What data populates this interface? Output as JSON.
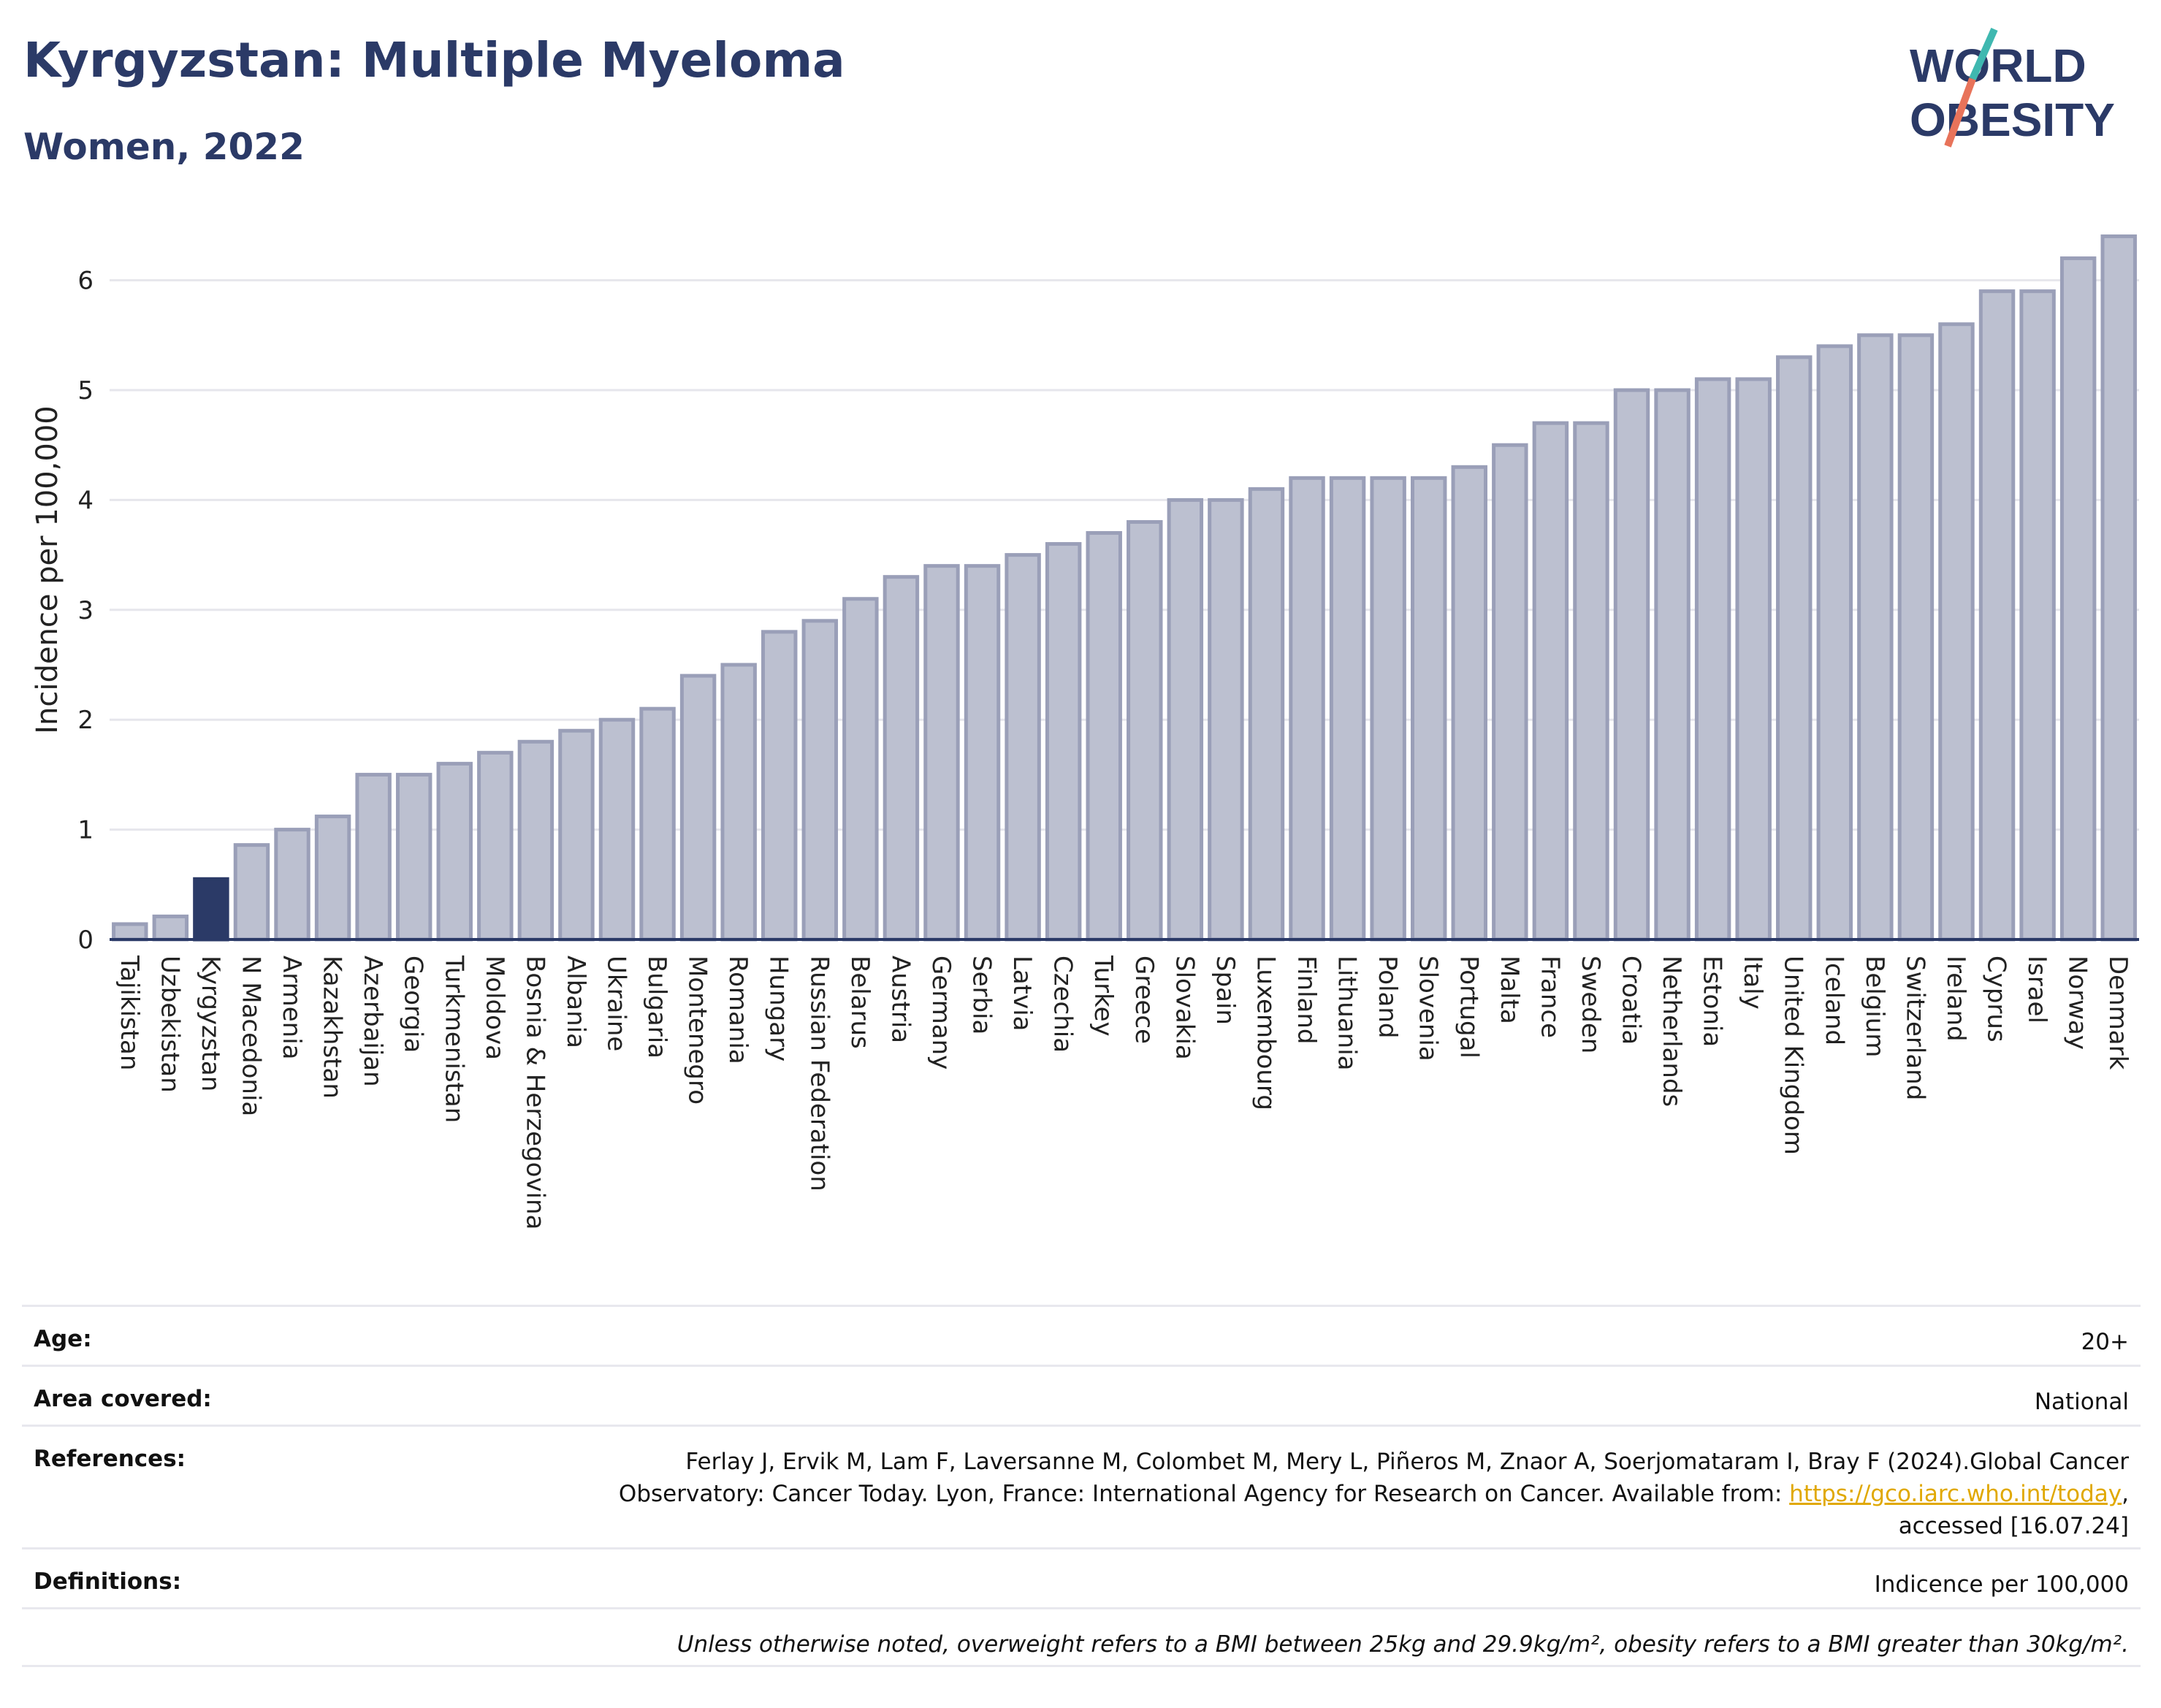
{
  "header": {
    "title": "Kyrgyzstan: Multiple Myeloma",
    "subtitle": "Women, 2022"
  },
  "logo": {
    "line1": "WORLD",
    "line2": "OBESITY",
    "icon": "slash-icon"
  },
  "colors": {
    "highlight": "#2b3a67",
    "bar": "#bcc0d0",
    "bar_stroke": "#9a9fb8",
    "axis": "#2b3a67",
    "grid": "#e6e6ec",
    "accent_teal": "#3fb8b0",
    "accent_coral": "#e8735a"
  },
  "chart_data": {
    "type": "bar",
    "ylabel": "Incidence per 100,000",
    "ylim": [
      0,
      6.5
    ],
    "yticks": [
      0,
      1,
      2,
      3,
      4,
      5,
      6
    ],
    "highlight": "Kyrgyzstan",
    "categories": [
      "Tajikistan",
      "Uzbekistan",
      "Kyrgyzstan",
      "N Macedonia",
      "Armenia",
      "Kazakhstan",
      "Azerbaijan",
      "Georgia",
      "Turkmenistan",
      "Moldova",
      "Bosnia & Herzegovina",
      "Albania",
      "Ukraine",
      "Bulgaria",
      "Montenegro",
      "Romania",
      "Hungary",
      "Russian Federation",
      "Belarus",
      "Austria",
      "Germany",
      "Serbia",
      "Latvia",
      "Czechia",
      "Turkey",
      "Greece",
      "Slovakia",
      "Spain",
      "Luxembourg",
      "Finland",
      "Lithuania",
      "Poland",
      "Slovenia",
      "Portugal",
      "Malta",
      "France",
      "Sweden",
      "Croatia",
      "Netherlands",
      "Estonia",
      "Italy",
      "United Kingdom",
      "Iceland",
      "Belgium",
      "Switzerland",
      "Ireland",
      "Cyprus",
      "Israel",
      "Norway",
      "Denmark"
    ],
    "values": [
      0.14,
      0.21,
      0.55,
      0.86,
      1.0,
      1.12,
      1.5,
      1.5,
      1.6,
      1.7,
      1.8,
      1.9,
      2.0,
      2.1,
      2.4,
      2.5,
      2.8,
      2.9,
      3.1,
      3.3,
      3.4,
      3.4,
      3.5,
      3.6,
      3.7,
      3.8,
      4.0,
      4.0,
      4.1,
      4.2,
      4.2,
      4.2,
      4.2,
      4.3,
      4.5,
      4.7,
      4.7,
      5.0,
      5.0,
      5.1,
      5.1,
      5.3,
      5.4,
      5.5,
      5.5,
      5.6,
      5.9,
      5.9,
      6.2,
      6.4
    ]
  },
  "info": {
    "age_label": "Age:",
    "age_value": "20+",
    "area_label": "Area covered:",
    "area_value": "National",
    "references_label": "References:",
    "references_line1": "Ferlay J, Ervik M, Lam F, Laversanne M, Colombet M, Mery L, Piñeros M, Znaor A, Soerjomataram I, Bray F (2024).Global Cancer",
    "references_line2_prefix": "Observatory: Cancer Today. Lyon, France: International Agency for Research on Cancer. Available from: ",
    "references_link": "https://gco.iarc.who.int/today",
    "references_line2_suffix": ",",
    "references_line3": "accessed [16.07.24]",
    "definitions_label": "Definitions:",
    "definitions_value": "Indicence per 100,000",
    "note": "Unless otherwise noted, overweight refers to a BMI between 25kg and 29.9kg/m², obesity refers to a BMI greater than 30kg/m²."
  }
}
